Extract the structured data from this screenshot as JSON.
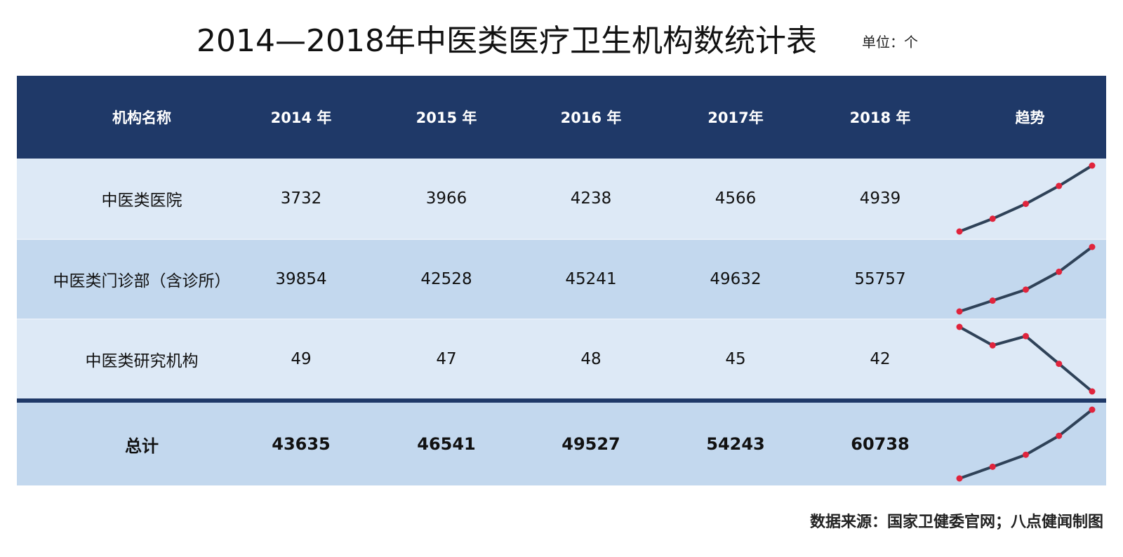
{
  "title": "2014—2018年中医类医疗卫生机构数统计表",
  "unit": "单位：个",
  "source": "数据来源：国家卫健委官网；八点健闻制图",
  "colors": {
    "header_bg": "#1f3968",
    "row_light": "#dde9f6",
    "row_dark": "#c3d8ee",
    "line": "#2f4258",
    "marker": "#e0243c"
  },
  "chart_data": {
    "type": "table",
    "columns": [
      "机构名称",
      "2014 年",
      "2015 年",
      "2016 年",
      "2017年",
      "2018 年",
      "趋势"
    ],
    "rows": [
      {
        "name": "中医类医院",
        "values": [
          3732,
          3966,
          4238,
          4566,
          4939
        ]
      },
      {
        "name": "中医类门诊部（含诊所）",
        "values": [
          39854,
          42528,
          45241,
          49632,
          55757
        ]
      },
      {
        "name": "中医类研究机构",
        "values": [
          49,
          47,
          48,
          45,
          42
        ]
      },
      {
        "name": "总计",
        "values": [
          43635,
          46541,
          49527,
          54243,
          60738
        ]
      }
    ]
  }
}
